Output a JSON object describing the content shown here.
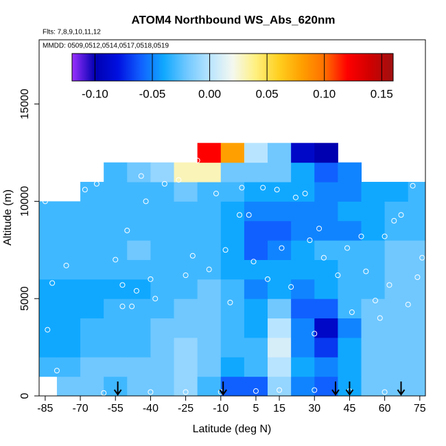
{
  "chart_data": {
    "type": "heatmap",
    "title": "ATOM4 Northbound WS_Abs_620nm",
    "flights_note": "Flts: 7,8,9,10,11,12",
    "dates_note": "MMDD: 0509,0512,0514,0517,0518,0519",
    "x_label": "Latitude (deg N)",
    "y_label": "Altitude (m)",
    "xlim": [
      -87.6,
      77.4
    ],
    "ylim": [
      0,
      18300
    ],
    "xticks": [
      -85,
      -70,
      -55,
      -40,
      -25,
      -10,
      5,
      15,
      30,
      45,
      60,
      75
    ],
    "yticks": [
      0,
      5000,
      10000,
      15000
    ],
    "zlim": [
      -0.12,
      0.16
    ],
    "zticks": [
      {
        "value": -0.1,
        "label": "-0.10"
      },
      -0.05,
      {
        "value": 0,
        "label": "0.00"
      },
      0.05,
      {
        "value": 0.1,
        "label": "0.10"
      },
      0.15
    ],
    "colormap": [
      "#9b30ff",
      "#0000b0",
      "#0010e0",
      "#1060ff",
      "#10a8ff",
      "#70c8ff",
      "#b8e4ff",
      "#f4f8f0",
      "#fff080",
      "#ffd020",
      "#ffa000",
      "#ff7000",
      "#ff0000",
      "#d00000",
      "#a01010"
    ],
    "lat_bins": [
      -90,
      -80,
      -70,
      -60,
      -50,
      -40,
      -30,
      -20,
      -10,
      0,
      10,
      20,
      30,
      40,
      50,
      60,
      70,
      80
    ],
    "alt_bins": [
      0,
      1000,
      2000,
      3000,
      4000,
      5000,
      6000,
      7000,
      8000,
      9000,
      10000,
      11000,
      12000,
      13000
    ],
    "values": [
      [
        null,
        -0.02,
        -0.02,
        -0.03,
        -0.02,
        -0.02,
        -0.01,
        -0.03,
        -0.06,
        -0.06,
        -0.01,
        -0.05,
        -0.06,
        -0.04,
        -0.02,
        -0.02,
        -0.02
      ],
      [
        -0.03,
        -0.03,
        -0.02,
        -0.02,
        -0.02,
        -0.02,
        -0.01,
        -0.02,
        -0.04,
        -0.03,
        0.0,
        -0.04,
        -0.05,
        -0.04,
        -0.02,
        -0.02,
        -0.02
      ],
      [
        -0.04,
        -0.04,
        -0.03,
        -0.03,
        -0.03,
        -0.02,
        -0.01,
        -0.02,
        -0.03,
        -0.03,
        0.01,
        -0.05,
        -0.07,
        -0.04,
        -0.02,
        -0.02,
        -0.02
      ],
      [
        -0.04,
        -0.04,
        -0.03,
        -0.03,
        -0.03,
        -0.02,
        -0.02,
        -0.02,
        -0.03,
        -0.04,
        0.0,
        -0.05,
        -0.09,
        -0.05,
        -0.02,
        -0.02,
        -0.02
      ],
      [
        -0.04,
        -0.04,
        -0.04,
        -0.03,
        -0.03,
        -0.03,
        -0.02,
        -0.02,
        -0.03,
        -0.04,
        -0.02,
        -0.06,
        -0.06,
        -0.03,
        -0.02,
        -0.02,
        -0.02
      ],
      [
        -0.04,
        -0.04,
        -0.04,
        -0.04,
        -0.04,
        -0.03,
        -0.03,
        -0.02,
        -0.03,
        -0.05,
        -0.04,
        -0.05,
        -0.04,
        -0.03,
        -0.03,
        -0.02,
        -0.02
      ],
      [
        -0.03,
        -0.03,
        -0.03,
        -0.03,
        -0.03,
        -0.03,
        -0.03,
        -0.03,
        -0.04,
        -0.04,
        -0.04,
        -0.04,
        -0.04,
        -0.03,
        -0.03,
        -0.02,
        -0.02
      ],
      [
        -0.03,
        -0.03,
        -0.03,
        -0.03,
        -0.02,
        -0.03,
        -0.03,
        -0.03,
        -0.04,
        -0.06,
        -0.05,
        -0.04,
        -0.03,
        -0.03,
        -0.03,
        -0.02,
        -0.02
      ],
      [
        -0.03,
        -0.03,
        -0.03,
        -0.03,
        -0.03,
        -0.03,
        -0.03,
        -0.03,
        -0.04,
        -0.06,
        -0.06,
        -0.05,
        -0.05,
        -0.05,
        -0.04,
        -0.03,
        -0.03
      ],
      [
        -0.03,
        -0.03,
        -0.03,
        -0.03,
        -0.03,
        -0.03,
        -0.03,
        -0.03,
        -0.04,
        -0.05,
        -0.05,
        -0.05,
        -0.05,
        -0.04,
        -0.04,
        -0.03,
        -0.03
      ],
      [
        null,
        null,
        -0.03,
        -0.03,
        -0.03,
        -0.03,
        -0.02,
        -0.03,
        -0.03,
        -0.04,
        -0.04,
        -0.04,
        -0.05,
        -0.05,
        -0.04,
        -0.04,
        -0.03
      ],
      [
        null,
        null,
        null,
        -0.03,
        -0.02,
        -0.01,
        0.03,
        0.03,
        -0.02,
        -0.02,
        -0.02,
        -0.04,
        -0.06,
        -0.05,
        null,
        null,
        null
      ],
      [
        null,
        null,
        null,
        null,
        null,
        null,
        null,
        0.12,
        0.08,
        0.0,
        -0.02,
        -0.09,
        -0.1,
        null,
        null,
        null,
        null
      ]
    ],
    "points": {
      "lat": [
        -85,
        -84,
        -82,
        -80,
        -76,
        -74,
        -70,
        -68,
        -63,
        -55,
        -52,
        -52,
        -50,
        -48,
        -46,
        -44,
        -42,
        -40,
        -38,
        -34,
        -28,
        -25,
        -22,
        -20,
        -15,
        -12,
        -8,
        -6,
        -2,
        -1,
        2,
        4,
        8,
        10,
        14,
        16,
        20,
        22,
        26,
        28,
        30,
        32,
        34,
        40,
        44,
        46,
        50,
        52,
        56,
        58,
        60,
        62,
        64,
        67,
        70,
        72,
        74,
        76,
        -10,
        5,
        15,
        30,
        45,
        60,
        -60,
        -40,
        -25
      ],
      "alt": [
        10000,
        3400,
        5800,
        1300,
        6700,
        11300,
        11200,
        10600,
        10900,
        7000,
        5700,
        4600,
        8500,
        4600,
        5400,
        11300,
        10000,
        6000,
        5000,
        10900,
        11100,
        6200,
        7200,
        12100,
        6500,
        10400,
        7500,
        4800,
        9300,
        10700,
        9300,
        6900,
        10700,
        6000,
        10600,
        7600,
        5600,
        10200,
        10400,
        8000,
        3200,
        8600,
        7100,
        6200,
        7600,
        4300,
        8200,
        6400,
        4900,
        4000,
        8200,
        5700,
        9000,
        9300,
        4700,
        10800,
        6100,
        7100,
        200,
        250,
        300,
        300,
        250,
        200,
        150,
        200,
        200
      ]
    },
    "arrow_lats": [
      -54,
      -9,
      39,
      45,
      67
    ]
  }
}
